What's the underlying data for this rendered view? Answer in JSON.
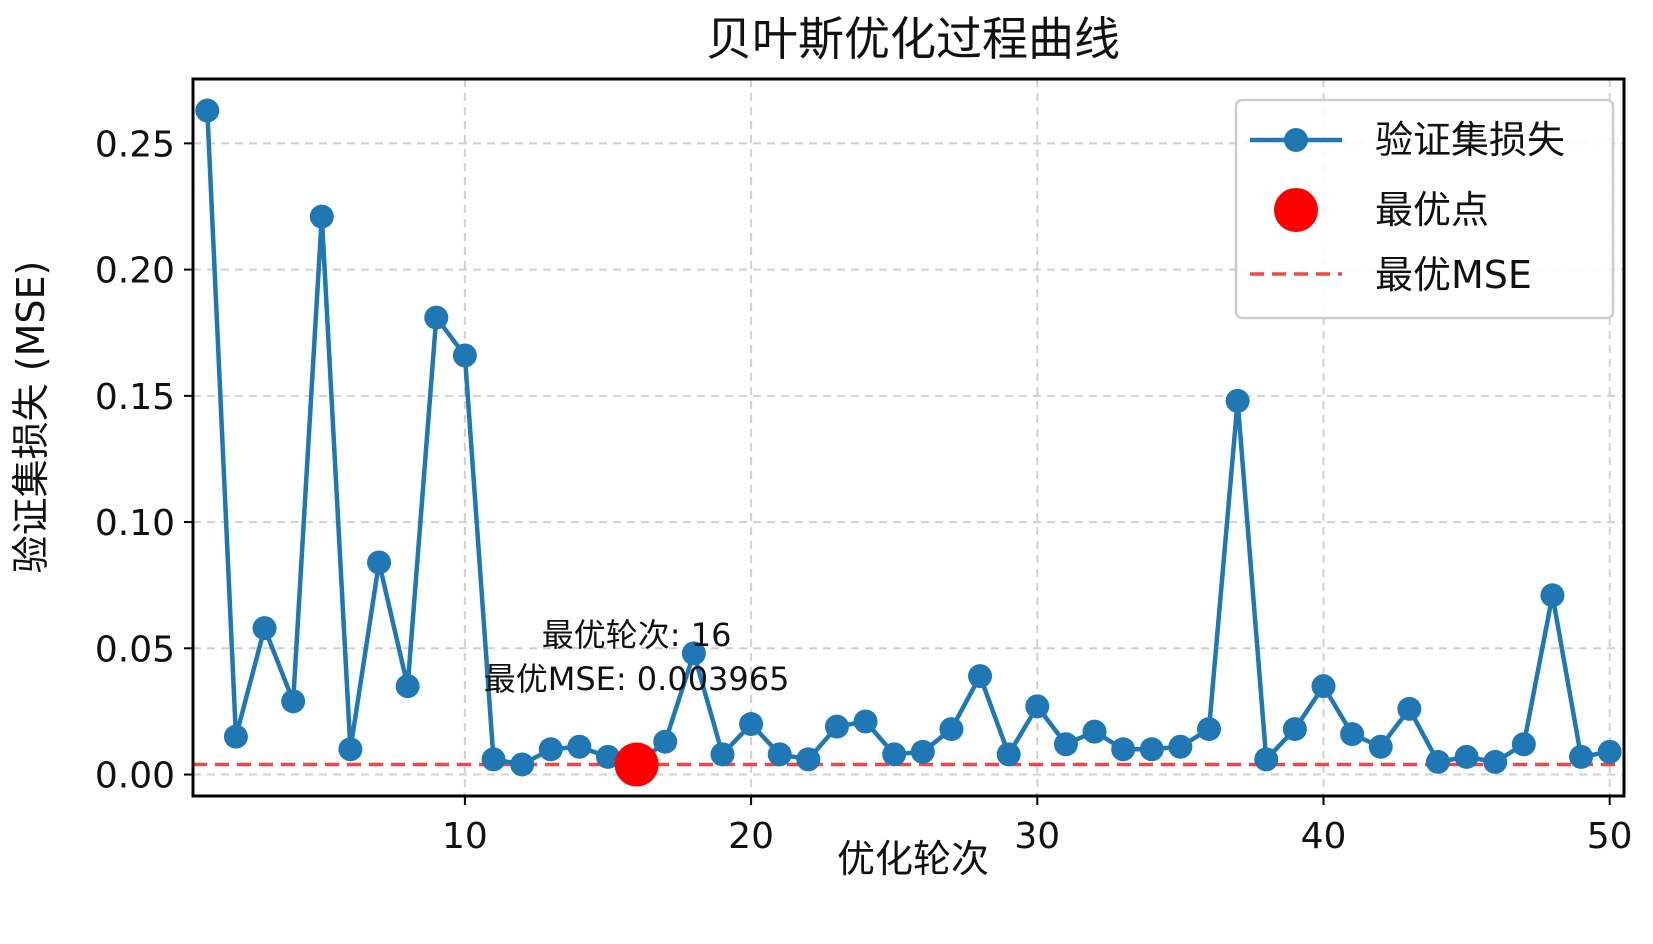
{
  "chart_data": {
    "type": "line",
    "title": "贝叶斯优化过程曲线",
    "xlabel": "优化轮次",
    "ylabel": "验证集损失 (MSE)",
    "xlim": [
      0.5,
      50.5
    ],
    "ylim": [
      -0.0085,
      0.2755
    ],
    "xticks": [
      10,
      20,
      30,
      40,
      50
    ],
    "yticks": [
      0.0,
      0.05,
      0.1,
      0.15,
      0.2,
      0.25
    ],
    "ytick_labels": [
      "0.00",
      "0.05",
      "0.10",
      "0.15",
      "0.20",
      "0.25"
    ],
    "grid": true,
    "legend_position": "top-right",
    "colors": {
      "series": "#1f77b4",
      "best_point": "#ff0000",
      "best_line": "#f04848"
    },
    "series": [
      {
        "name": "验证集损失",
        "x": [
          1,
          2,
          3,
          4,
          5,
          6,
          7,
          8,
          9,
          10,
          11,
          12,
          13,
          14,
          15,
          16,
          17,
          18,
          19,
          20,
          21,
          22,
          23,
          24,
          25,
          26,
          27,
          28,
          29,
          30,
          31,
          32,
          33,
          34,
          35,
          36,
          37,
          38,
          39,
          40,
          41,
          42,
          43,
          44,
          45,
          46,
          47,
          48,
          49,
          50
        ],
        "values": [
          0.263,
          0.015,
          0.058,
          0.029,
          0.221,
          0.01,
          0.084,
          0.035,
          0.181,
          0.166,
          0.006,
          0.004,
          0.01,
          0.011,
          0.007,
          0.004,
          0.013,
          0.048,
          0.008,
          0.02,
          0.008,
          0.006,
          0.019,
          0.021,
          0.008,
          0.009,
          0.018,
          0.039,
          0.008,
          0.027,
          0.012,
          0.017,
          0.01,
          0.01,
          0.011,
          0.018,
          0.148,
          0.006,
          0.018,
          0.035,
          0.016,
          0.011,
          0.026,
          0.005,
          0.007,
          0.005,
          0.012,
          0.071,
          0.007,
          0.009
        ]
      }
    ],
    "best_point": {
      "label": "最优点",
      "x": 16,
      "y": 0.003965
    },
    "best_line": {
      "label": "最优MSE",
      "y": 0.003965
    },
    "annotation": {
      "line1": "最优轮次: 16",
      "line2": "最优MSE: 0.003965"
    }
  }
}
